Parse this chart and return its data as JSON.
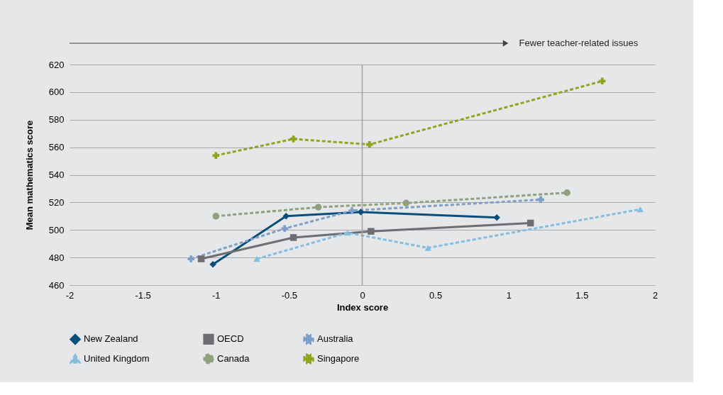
{
  "chart_data": {
    "type": "line",
    "xlabel": "Index score",
    "ylabel": "Mean mathematics score",
    "annotations": [
      "Fewer teacher-related issues"
    ],
    "xlim": [
      -2,
      2
    ],
    "xticks": [
      -2,
      -1.5,
      -1,
      -0.5,
      0,
      0.5,
      1,
      1.5,
      2
    ],
    "ylim": [
      460,
      620
    ],
    "yticks": [
      460,
      480,
      500,
      520,
      540,
      560,
      580,
      600,
      620
    ],
    "grid": "y",
    "legend": "bottom",
    "ref_lines": [
      {
        "axis": "x",
        "value": 0,
        "color": "#a0a0a0"
      }
    ],
    "series": [
      {
        "name": "New Zealand",
        "color": "#0a4f7c",
        "marker": "diamond",
        "line_style": "solid",
        "x": [
          -1.02,
          -0.52,
          -0.01,
          0.92
        ],
        "values": [
          475,
          510,
          513,
          509
        ]
      },
      {
        "name": "OECD",
        "color": "#6d6e71",
        "marker": "square",
        "line_style": "solid",
        "x": [
          -1.1,
          -0.47,
          0.06,
          1.15
        ],
        "values": [
          479,
          494.5,
          499,
          505
        ]
      },
      {
        "name": "Australia",
        "color": "#7da0c8",
        "marker": "x",
        "line_style": "dashed",
        "x": [
          -1.17,
          -0.53,
          -0.07,
          1.22
        ],
        "values": [
          479,
          501,
          514,
          522
        ]
      },
      {
        "name": "United Kingdom",
        "color": "#84bde0",
        "marker": "triangle",
        "line_style": "dashed",
        "x": [
          -0.72,
          -0.1,
          0.45,
          1.9
        ],
        "values": [
          479,
          498,
          487,
          515
        ]
      },
      {
        "name": "Canada",
        "color": "#8fa07f",
        "marker": "circle",
        "line_style": "dashed",
        "x": [
          -1.0,
          -0.3,
          0.3,
          1.4
        ],
        "values": [
          510,
          516.5,
          519.5,
          527
        ]
      },
      {
        "name": "Singapore",
        "color": "#8ea51f",
        "marker": "cross",
        "line_style": "dashed",
        "x": [
          -1.0,
          -0.47,
          0.05,
          1.64
        ],
        "values": [
          554,
          566,
          562,
          608
        ]
      }
    ]
  }
}
